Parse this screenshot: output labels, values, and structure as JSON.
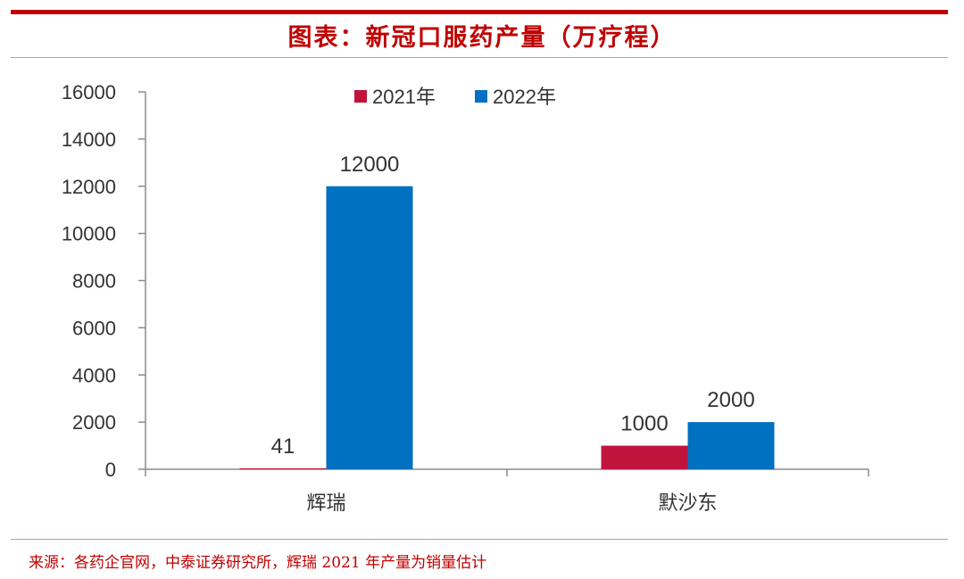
{
  "title": "图表：新冠口服药产量（万疗程）",
  "source": "来源：各药企官网，中泰证券研究所，辉瑞 2021 年产量为销量估计",
  "colors": {
    "brand_red": "#c00000",
    "series_2021": "#c0143c",
    "series_2022": "#0070c0"
  },
  "chart_data": {
    "type": "bar",
    "title": "图表：新冠口服药产量（万疗程）",
    "categories": [
      "辉瑞",
      "默沙东"
    ],
    "series": [
      {
        "name": "2021年",
        "values": [
          41,
          1000
        ],
        "color": "#c0143c"
      },
      {
        "name": "2022年",
        "values": [
          12000,
          2000
        ],
        "color": "#0070c0"
      }
    ],
    "ylim": [
      0,
      16000
    ],
    "yticks": [
      0,
      2000,
      4000,
      6000,
      8000,
      10000,
      12000,
      14000,
      16000
    ],
    "xlabel": "",
    "ylabel": "",
    "grid": false,
    "legend_position": "top-center"
  }
}
